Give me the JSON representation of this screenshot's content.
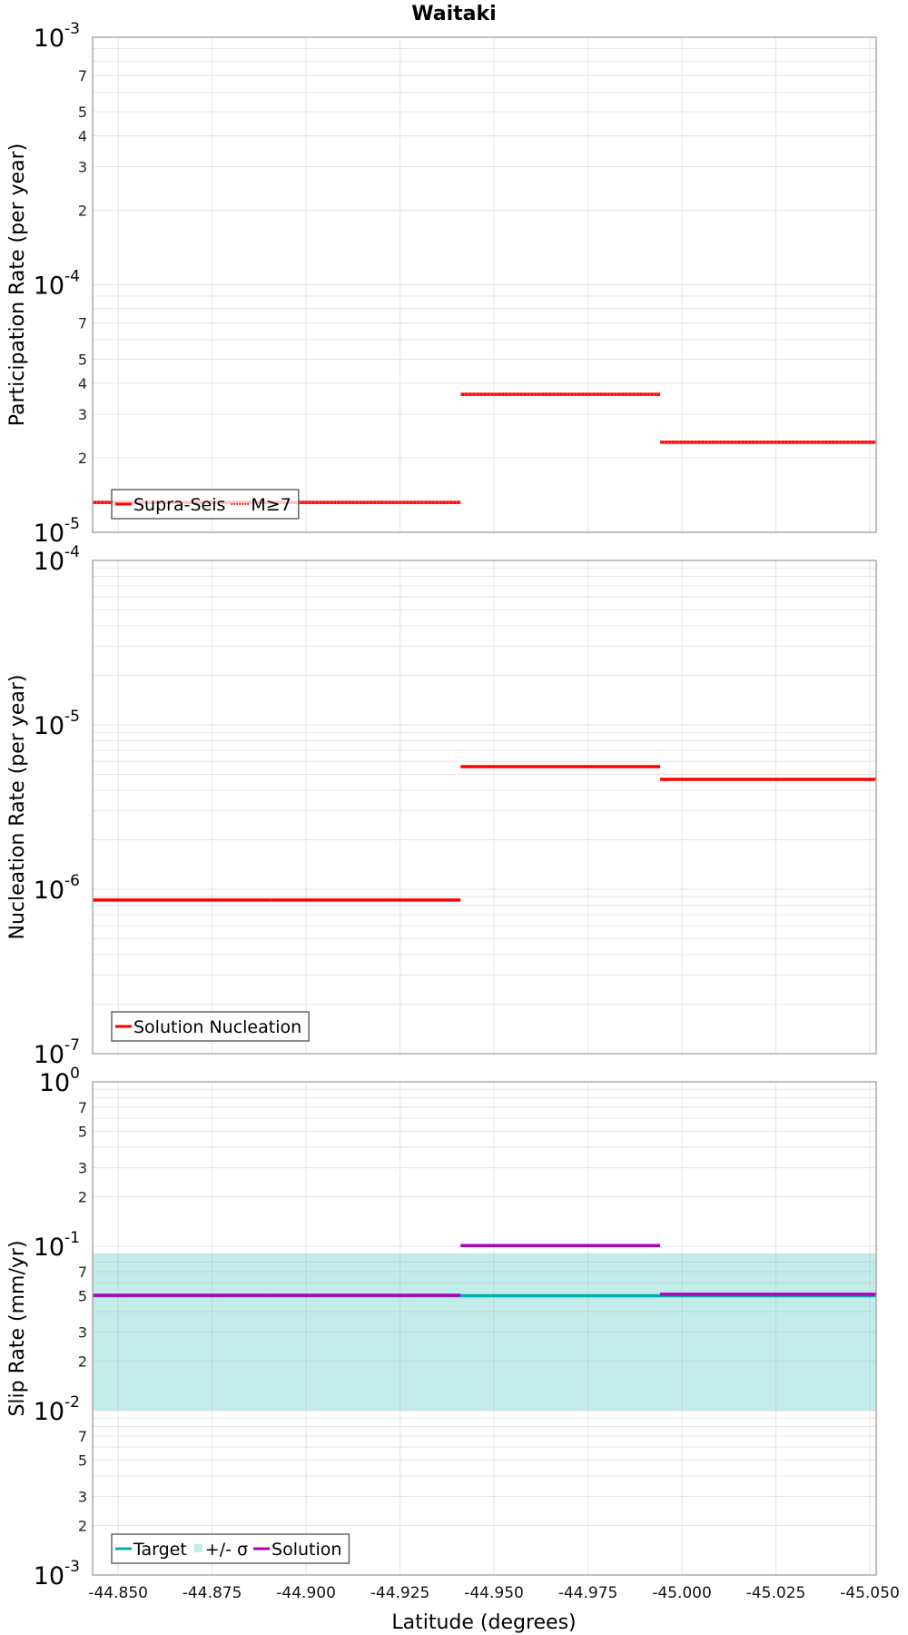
{
  "chart_data": {
    "title": "Waitaki",
    "xlabel": "Latitude (degrees)",
    "xlim": [
      -44.8432,
      -45.0517
    ],
    "x_ticks": [
      "-44.850",
      "-44.875",
      "-44.900",
      "-44.925",
      "-44.950",
      "-44.975",
      "-45.000",
      "-45.025",
      "-45.050"
    ],
    "x_tick_values": [
      -44.85,
      -44.875,
      -44.9,
      -44.925,
      -44.95,
      -44.975,
      -45.0,
      -45.025,
      -45.05
    ],
    "grid": true,
    "panels": [
      {
        "type": "line",
        "ylabel": "Participation Rate (per year)",
        "yscale": "log",
        "ylim": [
          1e-05,
          0.001
        ],
        "decade_labels": [
          {
            "base": "10",
            "exp": "-3",
            "value": 0.001
          },
          {
            "base": "10",
            "exp": "-4",
            "value": 0.0001
          },
          {
            "base": "10",
            "exp": "-5",
            "value": 1e-05
          }
        ],
        "minor_labels": [
          "7",
          "5",
          "4",
          "3",
          "2"
        ],
        "legend_position": "bottom-left",
        "legend": [
          {
            "label": "Supra-Seis",
            "color": "#ff0000",
            "style": "solid"
          },
          {
            "label": "M≥7",
            "color": "#ff0000",
            "style": "dotted"
          }
        ],
        "series": [
          {
            "name": "Supra-Seis",
            "color": "#ff0000",
            "style": "solid",
            "segments": [
              {
                "x": [
                  -44.8432,
                  -44.8906
                ],
                "y": 1.32e-05
              },
              {
                "x": [
                  -44.8906,
                  -44.9411
                ],
                "y": 1.32e-05
              },
              {
                "x": [
                  -44.9411,
                  -44.9942
                ],
                "y": 3.61e-05
              },
              {
                "x": [
                  -44.9942,
                  -45.0517
                ],
                "y": 2.31e-05
              }
            ]
          },
          {
            "name": "M≥7",
            "color": "#ff0000",
            "style": "dotted",
            "segments": [
              {
                "x": [
                  -44.8432,
                  -44.8906
                ],
                "y": 1.32e-05
              },
              {
                "x": [
                  -44.8906,
                  -44.9411
                ],
                "y": 1.32e-05
              },
              {
                "x": [
                  -44.9411,
                  -44.9942
                ],
                "y": 3.61e-05
              },
              {
                "x": [
                  -44.9942,
                  -45.0517
                ],
                "y": 2.31e-05
              }
            ]
          }
        ]
      },
      {
        "type": "line",
        "ylabel": "Nucleation Rate (per year)",
        "yscale": "log",
        "ylim": [
          1e-07,
          0.0001
        ],
        "decade_labels": [
          {
            "base": "10",
            "exp": "-4",
            "value": 0.0001
          },
          {
            "base": "10",
            "exp": "-5",
            "value": 1e-05
          },
          {
            "base": "10",
            "exp": "-6",
            "value": 1e-06
          },
          {
            "base": "10",
            "exp": "-7",
            "value": 1e-07
          }
        ],
        "minor_labels": [],
        "legend_position": "bottom-left",
        "legend": [
          {
            "label": "Solution Nucleation",
            "color": "#ff0000",
            "style": "solid"
          }
        ],
        "series": [
          {
            "name": "Solution Nucleation",
            "color": "#ff0000",
            "style": "solid",
            "segments": [
              {
                "x": [
                  -44.8432,
                  -44.8906
                ],
                "y": 8.6e-07
              },
              {
                "x": [
                  -44.8906,
                  -44.9411
                ],
                "y": 8.6e-07
              },
              {
                "x": [
                  -44.9411,
                  -44.9942
                ],
                "y": 5.57e-06
              },
              {
                "x": [
                  -44.9942,
                  -45.0517
                ],
                "y": 4.66e-06
              }
            ]
          }
        ]
      },
      {
        "type": "line",
        "ylabel": "Slip Rate (mm/yr)",
        "yscale": "log",
        "ylim": [
          0.001,
          1
        ],
        "decade_labels": [
          {
            "base": "10",
            "exp": "0",
            "value": 1
          },
          {
            "base": "10",
            "exp": "-1",
            "value": 0.1
          },
          {
            "base": "10",
            "exp": "-2",
            "value": 0.01
          },
          {
            "base": "10",
            "exp": "-3",
            "value": 0.001
          }
        ],
        "minor_labels": [
          "7",
          "5",
          "3",
          "2"
        ],
        "legend_position": "bottom-left",
        "legend": [
          {
            "label": "Target",
            "color": "#00b0b0",
            "style": "solid"
          },
          {
            "label": "+/- σ",
            "color": "#c2ecea",
            "style": "box"
          },
          {
            "label": "Solution",
            "color": "#b000b8",
            "style": "solid"
          }
        ],
        "band": {
          "name": "+/- σ",
          "color": "#c2ecea",
          "x": [
            -44.8432,
            -45.0517
          ],
          "y_low": 0.01,
          "y_high": 0.09
        },
        "series": [
          {
            "name": "Target",
            "color": "#00b0b0",
            "style": "solid",
            "segments": [
              {
                "x": [
                  -44.8432,
                  -44.8906
                ],
                "y": 0.05
              },
              {
                "x": [
                  -44.8906,
                  -44.9411
                ],
                "y": 0.05
              },
              {
                "x": [
                  -44.9411,
                  -44.9942
                ],
                "y": 0.05
              },
              {
                "x": [
                  -44.9942,
                  -45.0517
                ],
                "y": 0.05
              }
            ]
          },
          {
            "name": "Solution",
            "color": "#b000b8",
            "style": "solid",
            "segments": [
              {
                "x": [
                  -44.8432,
                  -44.8906
                ],
                "y": 0.0503
              },
              {
                "x": [
                  -44.8906,
                  -44.9411
                ],
                "y": 0.0503
              },
              {
                "x": [
                  -44.9411,
                  -44.9942
                ],
                "y": 0.101
              },
              {
                "x": [
                  -44.9942,
                  -45.0517
                ],
                "y": 0.051
              }
            ]
          }
        ]
      }
    ]
  }
}
